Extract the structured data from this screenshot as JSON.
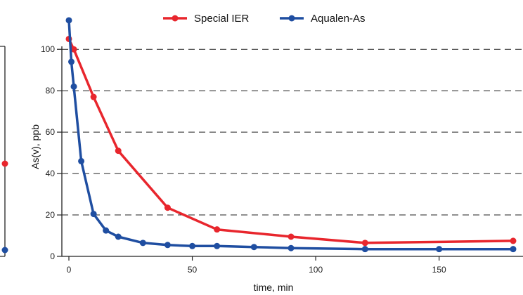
{
  "chart_data": {
    "type": "line",
    "xlabel": "time, min",
    "ylabel": "As(v), ppb",
    "xlim": [
      0,
      180
    ],
    "ylim": [
      0,
      115
    ],
    "x_ticks": [
      "0",
      "50",
      "100",
      "150"
    ],
    "y_ticks": [
      "0",
      "20",
      "40",
      "60",
      "80",
      "100"
    ],
    "grid": "horizontal dashed",
    "legend_position": "top",
    "series": [
      {
        "name": "Special IER",
        "color": "#e8262d",
        "x": [
          0,
          2,
          10,
          20,
          40,
          60,
          90,
          120,
          180
        ],
        "y": [
          105,
          100,
          77,
          51,
          23.5,
          13,
          9.5,
          6.5,
          7.5
        ]
      },
      {
        "name": "Aqualen-As",
        "color": "#1f4ea1",
        "x": [
          0,
          1,
          2,
          5,
          10,
          15,
          20,
          30,
          40,
          50,
          60,
          75,
          90,
          120,
          150,
          180
        ],
        "y": [
          114,
          94,
          82,
          46,
          20.5,
          12.5,
          9.5,
          6.5,
          5.5,
          5,
          5,
          4.5,
          4,
          3.5,
          3.5,
          3.5
        ]
      }
    ]
  },
  "left_fragment": {
    "red_color": "#e8262d",
    "blue_color": "#1f4ea1"
  }
}
